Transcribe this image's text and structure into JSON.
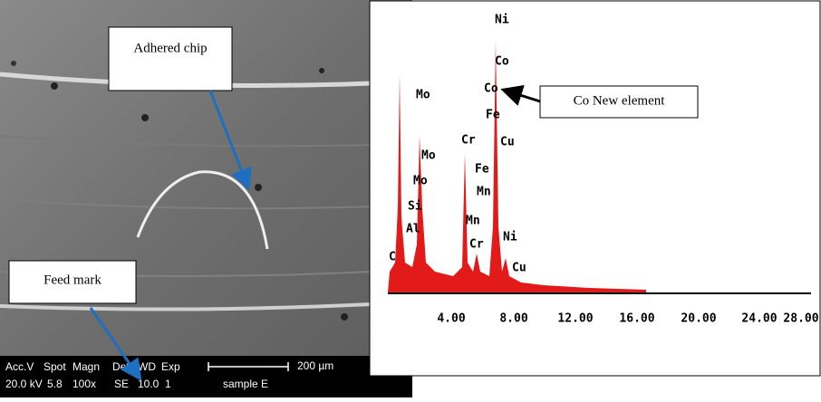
{
  "sem_image": {
    "callouts": [
      "Adhered chip",
      "Feed mark"
    ],
    "info_bar": {
      "headers": [
        "Acc.V",
        "Spot",
        "Magn",
        "Det",
        "WD",
        "Exp"
      ],
      "values": [
        "20.0 kV",
        "5.8",
        "100x",
        "SE",
        "10.0",
        "1"
      ],
      "scale": "200 µm",
      "sample": "sample E"
    }
  },
  "spectrum": {
    "callout": "Co New element",
    "peak_labels": [
      "Ni",
      "Co",
      "Co",
      "Fe",
      "Cu",
      "Mo",
      "Mo",
      "Mo",
      "Si",
      "Al",
      "C",
      "Cr",
      "Fe",
      "Mn",
      "Mn",
      "Cr",
      "Ni",
      "Cu"
    ],
    "x_tick_labels": [
      "4.00",
      "8.00",
      "12.00",
      "16.00",
      "20.00",
      "24.00",
      "28.00"
    ]
  }
}
